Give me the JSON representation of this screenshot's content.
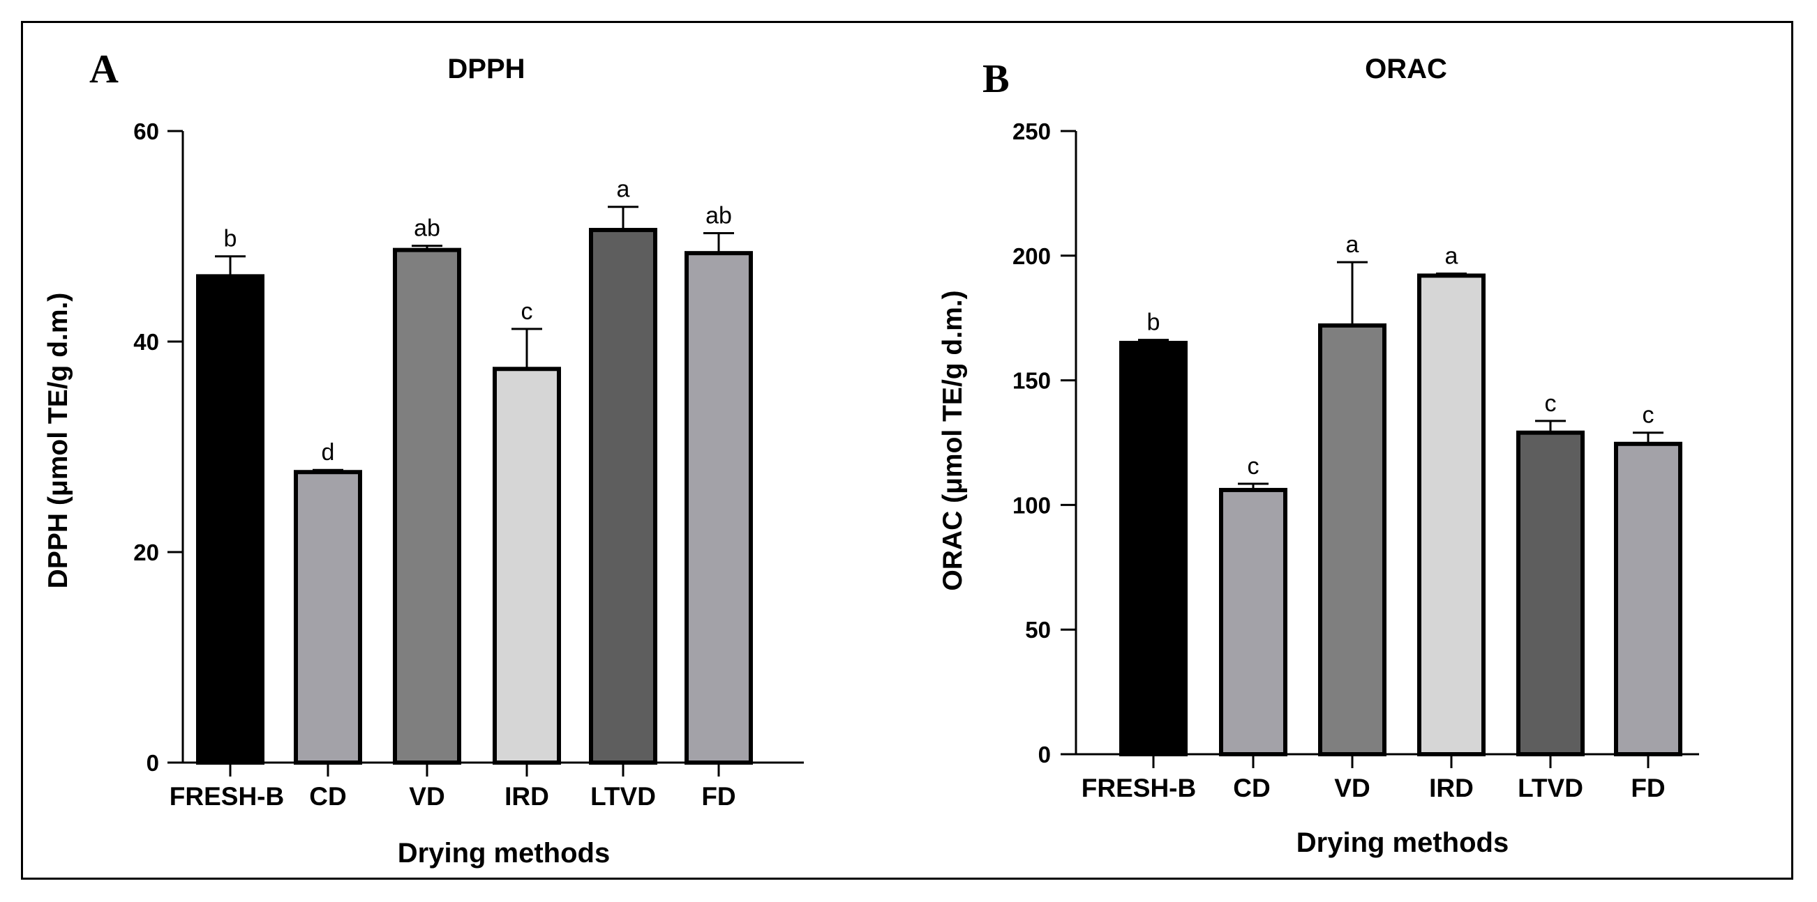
{
  "figure": {
    "panels": [
      "A",
      "B"
    ]
  },
  "colors": {
    "FRESH-B": "#000000",
    "CD": "#a3a2a8",
    "VD": "#7f7f7f",
    "IRD": "#d6d6d6",
    "LTVD": "#5e5e5e",
    "FD": "#a3a2a8"
  },
  "chart_data": [
    {
      "panel": "A",
      "type": "bar",
      "title": "DPPH",
      "xlabel": "Drying methods",
      "ylabel": "DPPH  (μmol TE/g d.m.)",
      "categories": [
        "FRESH-B",
        "CD",
        "VD",
        "IRD",
        "LTVD",
        "FD"
      ],
      "values": [
        46.2,
        27.6,
        48.7,
        37.4,
        50.6,
        48.4
      ],
      "errors": [
        1.9,
        0.2,
        0.4,
        3.8,
        2.2,
        1.9
      ],
      "significance": [
        "b",
        "d",
        "ab",
        "c",
        "a",
        "ab"
      ],
      "ylim": [
        0,
        60
      ],
      "yticks": [
        0,
        20,
        40,
        60
      ],
      "grid": false
    },
    {
      "panel": "B",
      "type": "bar",
      "title": "ORAC",
      "xlabel": "Drying methods",
      "ylabel": "ORAC (μmol TE/g d.m.)",
      "categories": [
        "FRESH-B",
        "CD",
        "VD",
        "IRD",
        "LTVD",
        "FD"
      ],
      "values": [
        165,
        106,
        172,
        192,
        129,
        124.5
      ],
      "errors": [
        1.2,
        2.5,
        25.4,
        0.8,
        4.7,
        4.5
      ],
      "significance": [
        "b",
        "c",
        "a",
        "a",
        "c",
        "c"
      ],
      "ylim": [
        0,
        250
      ],
      "yticks": [
        0,
        50,
        100,
        150,
        200,
        250
      ],
      "grid": false
    }
  ]
}
